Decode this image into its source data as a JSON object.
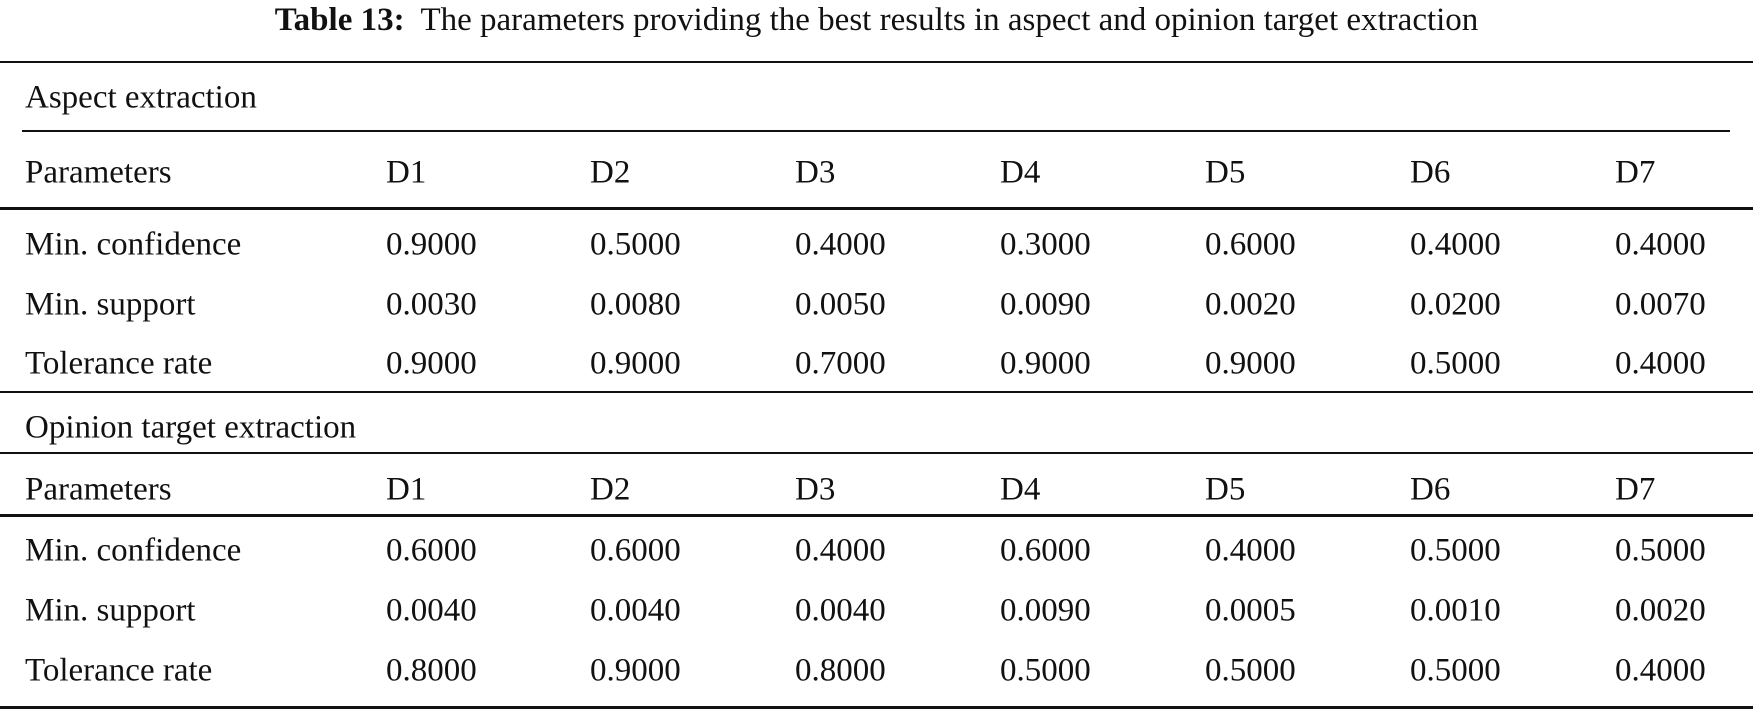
{
  "caption": {
    "label": "Table 13:",
    "text": "The parameters providing the best results in aspect and opinion target extraction"
  },
  "sections": [
    {
      "title": "Aspect extraction",
      "header": [
        "Parameters",
        "D1",
        "D2",
        "D3",
        "D4",
        "D5",
        "D6",
        "D7"
      ],
      "rows": [
        [
          "Min. confidence",
          "0.9000",
          "0.5000",
          "0.4000",
          "0.3000",
          "0.6000",
          "0.4000",
          "0.4000"
        ],
        [
          "Min. support",
          "0.0030",
          "0.0080",
          "0.0050",
          "0.0090",
          "0.0020",
          "0.0200",
          "0.0070"
        ],
        [
          "Tolerance rate",
          "0.9000",
          "0.9000",
          "0.7000",
          "0.9000",
          "0.9000",
          "0.5000",
          "0.4000"
        ]
      ]
    },
    {
      "title": "Opinion target extraction",
      "header": [
        "Parameters",
        "D1",
        "D2",
        "D3",
        "D4",
        "D5",
        "D6",
        "D7"
      ],
      "rows": [
        [
          "Min. confidence",
          "0.6000",
          "0.6000",
          "0.4000",
          "0.6000",
          "0.4000",
          "0.5000",
          "0.5000"
        ],
        [
          "Min. support",
          "0.0040",
          "0.0040",
          "0.0040",
          "0.0090",
          "0.0005",
          "0.0010",
          "0.0020"
        ],
        [
          "Tolerance rate",
          "0.8000",
          "0.9000",
          "0.8000",
          "0.5000",
          "0.5000",
          "0.5000",
          "0.4000"
        ]
      ]
    }
  ]
}
